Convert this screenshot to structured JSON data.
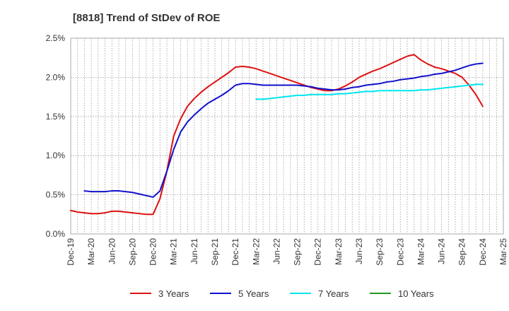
{
  "chart_data": {
    "type": "line",
    "title": "[8818]  Trend of StDev of ROE",
    "xlabel": "",
    "ylabel": "",
    "x_ticks": [
      "Dec-19",
      "Mar-20",
      "Jun-20",
      "Sep-20",
      "Dec-20",
      "Mar-21",
      "Jun-21",
      "Sep-21",
      "Dec-21",
      "Mar-22",
      "Jun-22",
      "Sep-22",
      "Dec-22",
      "Mar-23",
      "Jun-23",
      "Sep-23",
      "Dec-23",
      "Mar-24",
      "Jun-24",
      "Sep-24",
      "Dec-24",
      "Mar-25"
    ],
    "y_ticks": [
      "0.0%",
      "0.5%",
      "1.0%",
      "1.5%",
      "2.0%",
      "2.5%"
    ],
    "ylim": [
      0,
      2.5
    ],
    "y_unit": "%",
    "grid": true,
    "legend_position": "bottom",
    "series": [
      {
        "name": "3 Years",
        "color": "#dd1111",
        "points": [
          [
            "Dec-19",
            0.3
          ],
          [
            "Jan-20",
            0.28
          ],
          [
            "Feb-20",
            0.27
          ],
          [
            "Mar-20",
            0.26
          ],
          [
            "Apr-20",
            0.26
          ],
          [
            "May-20",
            0.27
          ],
          [
            "Jun-20",
            0.29
          ],
          [
            "Jul-20",
            0.29
          ],
          [
            "Aug-20",
            0.28
          ],
          [
            "Sep-20",
            0.27
          ],
          [
            "Oct-20",
            0.26
          ],
          [
            "Nov-20",
            0.25
          ],
          [
            "Dec-20",
            0.25
          ],
          [
            "Jan-21",
            0.45
          ],
          [
            "Feb-21",
            0.8
          ],
          [
            "Mar-21",
            1.25
          ],
          [
            "Apr-21",
            1.47
          ],
          [
            "May-21",
            1.63
          ],
          [
            "Jun-21",
            1.73
          ],
          [
            "Jul-21",
            1.81
          ],
          [
            "Aug-21",
            1.88
          ],
          [
            "Sep-21",
            1.94
          ],
          [
            "Oct-21",
            2.0
          ],
          [
            "Nov-21",
            2.06
          ],
          [
            "Dec-21",
            2.13
          ],
          [
            "Jan-22",
            2.14
          ],
          [
            "Feb-22",
            2.13
          ],
          [
            "Mar-22",
            2.11
          ],
          [
            "Apr-22",
            2.08
          ],
          [
            "May-22",
            2.05
          ],
          [
            "Jun-22",
            2.02
          ],
          [
            "Jul-22",
            1.99
          ],
          [
            "Aug-22",
            1.96
          ],
          [
            "Sep-22",
            1.93
          ],
          [
            "Oct-22",
            1.9
          ],
          [
            "Nov-22",
            1.87
          ],
          [
            "Dec-22",
            1.85
          ],
          [
            "Jan-23",
            1.83
          ],
          [
            "Feb-23",
            1.83
          ],
          [
            "Mar-23",
            1.85
          ],
          [
            "Apr-23",
            1.89
          ],
          [
            "May-23",
            1.94
          ],
          [
            "Jun-23",
            2.0
          ],
          [
            "Jul-23",
            2.04
          ],
          [
            "Aug-23",
            2.08
          ],
          [
            "Sep-23",
            2.11
          ],
          [
            "Oct-23",
            2.15
          ],
          [
            "Nov-23",
            2.19
          ],
          [
            "Dec-23",
            2.23
          ],
          [
            "Jan-24",
            2.27
          ],
          [
            "Feb-24",
            2.29
          ],
          [
            "Mar-24",
            2.22
          ],
          [
            "Apr-24",
            2.17
          ],
          [
            "May-24",
            2.13
          ],
          [
            "Jun-24",
            2.11
          ],
          [
            "Jul-24",
            2.08
          ],
          [
            "Aug-24",
            2.05
          ],
          [
            "Sep-24",
            2.0
          ],
          [
            "Oct-24",
            1.9
          ],
          [
            "Nov-24",
            1.78
          ],
          [
            "Dec-24",
            1.63
          ]
        ]
      },
      {
        "name": "5 Years",
        "color": "#1111cc",
        "points": [
          [
            "Feb-20",
            0.55
          ],
          [
            "Mar-20",
            0.54
          ],
          [
            "Apr-20",
            0.54
          ],
          [
            "May-20",
            0.54
          ],
          [
            "Jun-20",
            0.55
          ],
          [
            "Jul-20",
            0.55
          ],
          [
            "Aug-20",
            0.54
          ],
          [
            "Sep-20",
            0.53
          ],
          [
            "Oct-20",
            0.51
          ],
          [
            "Nov-20",
            0.49
          ],
          [
            "Dec-20",
            0.47
          ],
          [
            "Jan-21",
            0.55
          ],
          [
            "Feb-21",
            0.8
          ],
          [
            "Mar-21",
            1.08
          ],
          [
            "Apr-21",
            1.3
          ],
          [
            "May-21",
            1.43
          ],
          [
            "Jun-21",
            1.52
          ],
          [
            "Jul-21",
            1.6
          ],
          [
            "Aug-21",
            1.67
          ],
          [
            "Sep-21",
            1.72
          ],
          [
            "Oct-21",
            1.77
          ],
          [
            "Nov-21",
            1.83
          ],
          [
            "Dec-21",
            1.9
          ],
          [
            "Jan-22",
            1.92
          ],
          [
            "Feb-22",
            1.92
          ],
          [
            "Mar-22",
            1.91
          ],
          [
            "Apr-22",
            1.9
          ],
          [
            "May-22",
            1.9
          ],
          [
            "Jun-22",
            1.9
          ],
          [
            "Jul-22",
            1.9
          ],
          [
            "Aug-22",
            1.9
          ],
          [
            "Sep-22",
            1.9
          ],
          [
            "Oct-22",
            1.89
          ],
          [
            "Nov-22",
            1.88
          ],
          [
            "Dec-22",
            1.86
          ],
          [
            "Jan-23",
            1.85
          ],
          [
            "Feb-23",
            1.84
          ],
          [
            "Mar-23",
            1.84
          ],
          [
            "Apr-23",
            1.85
          ],
          [
            "May-23",
            1.87
          ],
          [
            "Jun-23",
            1.88
          ],
          [
            "Jul-23",
            1.9
          ],
          [
            "Aug-23",
            1.91
          ],
          [
            "Sep-23",
            1.92
          ],
          [
            "Oct-23",
            1.94
          ],
          [
            "Nov-23",
            1.95
          ],
          [
            "Dec-23",
            1.97
          ],
          [
            "Jan-24",
            1.98
          ],
          [
            "Feb-24",
            1.99
          ],
          [
            "Mar-24",
            2.01
          ],
          [
            "Apr-24",
            2.02
          ],
          [
            "May-24",
            2.04
          ],
          [
            "Jun-24",
            2.05
          ],
          [
            "Jul-24",
            2.07
          ],
          [
            "Aug-24",
            2.09
          ],
          [
            "Sep-24",
            2.12
          ],
          [
            "Oct-24",
            2.15
          ],
          [
            "Nov-24",
            2.17
          ],
          [
            "Dec-24",
            2.18
          ]
        ]
      },
      {
        "name": "7 Years",
        "color": "#00e5ee",
        "points": [
          [
            "Mar-22",
            1.72
          ],
          [
            "Apr-22",
            1.72
          ],
          [
            "May-22",
            1.73
          ],
          [
            "Jun-22",
            1.74
          ],
          [
            "Jul-22",
            1.75
          ],
          [
            "Aug-22",
            1.76
          ],
          [
            "Sep-22",
            1.77
          ],
          [
            "Oct-22",
            1.77
          ],
          [
            "Nov-22",
            1.78
          ],
          [
            "Dec-22",
            1.78
          ],
          [
            "Jan-23",
            1.78
          ],
          [
            "Feb-23",
            1.78
          ],
          [
            "Mar-23",
            1.79
          ],
          [
            "Apr-23",
            1.79
          ],
          [
            "May-23",
            1.8
          ],
          [
            "Jun-23",
            1.81
          ],
          [
            "Jul-23",
            1.82
          ],
          [
            "Aug-23",
            1.82
          ],
          [
            "Sep-23",
            1.83
          ],
          [
            "Oct-23",
            1.83
          ],
          [
            "Nov-23",
            1.83
          ],
          [
            "Dec-23",
            1.83
          ],
          [
            "Jan-24",
            1.83
          ],
          [
            "Feb-24",
            1.83
          ],
          [
            "Mar-24",
            1.84
          ],
          [
            "Apr-24",
            1.84
          ],
          [
            "May-24",
            1.85
          ],
          [
            "Jun-24",
            1.86
          ],
          [
            "Jul-24",
            1.87
          ],
          [
            "Aug-24",
            1.88
          ],
          [
            "Sep-24",
            1.89
          ],
          [
            "Oct-24",
            1.9
          ],
          [
            "Nov-24",
            1.91
          ],
          [
            "Dec-24",
            1.91
          ]
        ]
      },
      {
        "name": "10 Years",
        "color": "#229922",
        "points": []
      }
    ]
  }
}
